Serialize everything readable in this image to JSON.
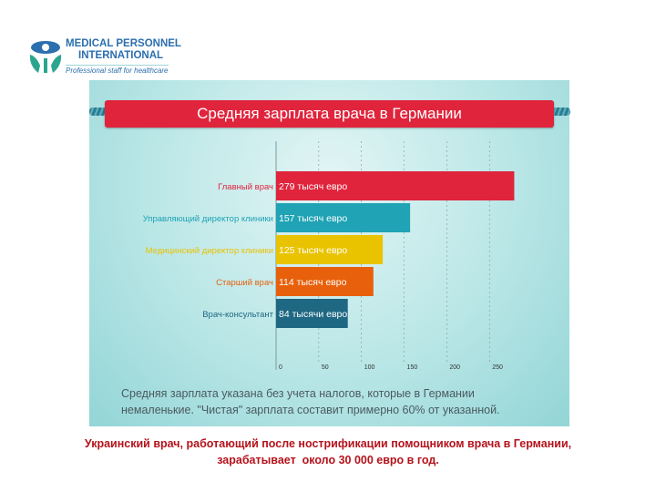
{
  "logo": {
    "line1": "MEDICAL PERSONNEL",
    "line2": "INTERNATIONAL",
    "tagline": "Professional staff for healthcare",
    "colors": {
      "blue": "#2b6fae",
      "green": "#2ba58f"
    }
  },
  "chart_data": {
    "type": "bar",
    "orientation": "horizontal",
    "title": "Средняя зарплата врача в Германии",
    "categories": [
      "Главный врач",
      "Управляющий директор клиники",
      "Медицинский директор клиники",
      "Старший врач",
      "Врач-консультант"
    ],
    "values": [
      279,
      157,
      125,
      114,
      84
    ],
    "data_labels": [
      "279 тысяч евро",
      "157 тысяч евро",
      "125 тысяч евро",
      "114 тысяч евро",
      "84 тысячи евро"
    ],
    "colors": [
      "#e0243c",
      "#1fa3b5",
      "#e9c300",
      "#e8600c",
      "#1f6883"
    ],
    "x_ticks": [
      0,
      50,
      100,
      150,
      200,
      250
    ],
    "xlim": [
      0,
      280
    ],
    "grid": "vertical dashed",
    "xlabel": "",
    "ylabel": ""
  },
  "caption": {
    "line1": "Средняя зарплата указана без учета налогов, которые в Германии",
    "line2": "немаленькие. \"Чистая\" зарплата составит примерно 60% от указанной."
  },
  "footer": {
    "line1": "Украинский врач, работающий после нострификации помощником врача в Германии,",
    "line2_pre": "зарабатывает  около ",
    "line2_num": "30 000",
    "line2_post": " евро в год."
  }
}
